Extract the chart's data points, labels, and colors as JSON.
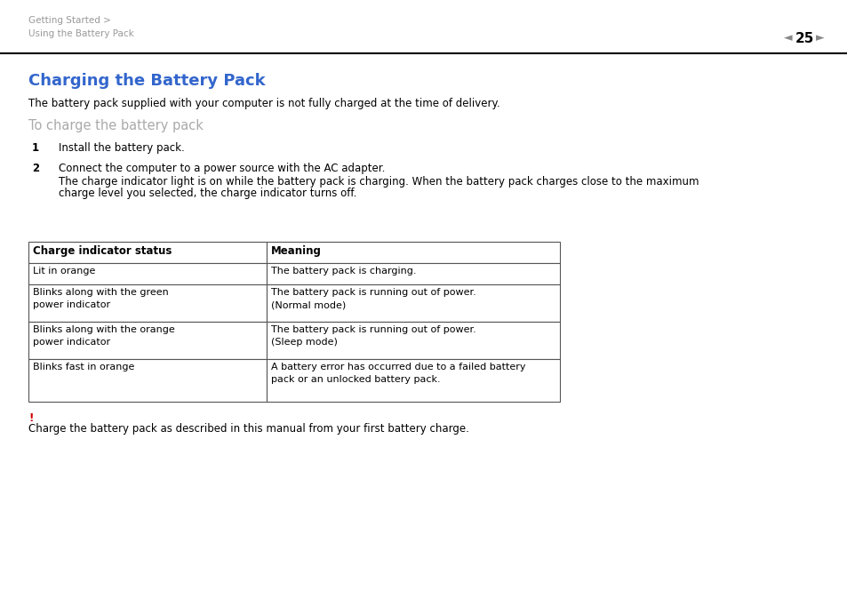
{
  "bg_color": "#ffffff",
  "header_text_left_line1": "Getting Started >",
  "header_text_left_line2": "Using the Battery Pack",
  "header_page": "25",
  "header_text_color": "#999999",
  "header_line_color": "#000000",
  "title": "Charging the Battery Pack",
  "title_color": "#3366cc",
  "subtitle": "The battery pack supplied with your computer is not fully charged at the time of delivery.",
  "section_header": "To charge the battery pack",
  "section_header_color": "#aaaaaa",
  "step1_num": "1",
  "step1_text": "Install the battery pack.",
  "step2_num": "2",
  "step2_line1": "Connect the computer to a power source with the AC adapter.",
  "step2_line2": "The charge indicator light is on while the battery pack is charging. When the battery pack charges close to the maximum",
  "step2_line3": "charge level you selected, the charge indicator turns off.",
  "table_col1_header": "Charge indicator status",
  "table_col2_header": "Meaning",
  "table_rows": [
    [
      "Lit in orange",
      "The battery pack is charging."
    ],
    [
      "Blinks along with the green\npower indicator",
      "The battery pack is running out of power.\n(Normal mode)"
    ],
    [
      "Blinks along with the orange\npower indicator",
      "The battery pack is running out of power.\n(Sleep mode)"
    ],
    [
      "Blinks fast in orange",
      "A battery error has occurred due to a failed battery\npack or an unlocked battery pack."
    ]
  ],
  "note_exclamation": "!",
  "note_exclamation_color": "#cc0000",
  "note_text": "Charge the battery pack as described in this manual from your first battery charge.",
  "table_border_color": "#555555",
  "text_color": "#000000",
  "body_fontsize": 8.5,
  "title_fontsize": 13,
  "section_header_fontsize": 10.5
}
